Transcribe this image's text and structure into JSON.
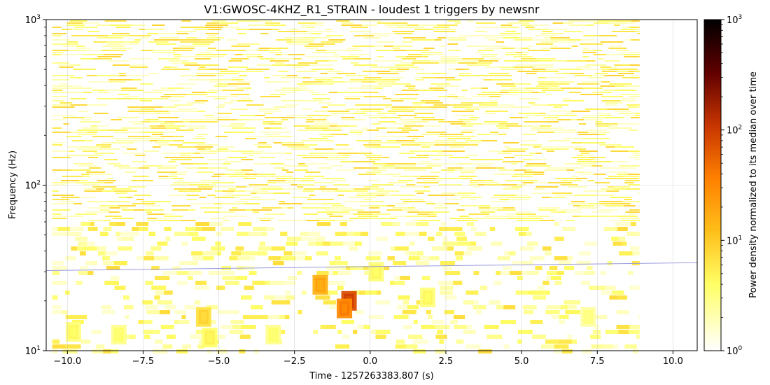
{
  "chart_data": {
    "type": "heatmap",
    "title": "V1:GWOSC-4KHZ_R1_STRAIN - loudest 1 triggers by newsnr",
    "xlabel": "Time - 1257263383.807 (s)",
    "ylabel": "Frequency (Hz)",
    "xlim": [
      -10.7,
      10.8
    ],
    "ylim": [
      10,
      1000
    ],
    "yscale": "log",
    "data_time_range": [
      -10.5,
      8.9
    ],
    "x_ticks": [
      {
        "value": -10.0,
        "label": "−10.0"
      },
      {
        "value": -7.5,
        "label": "−7.5"
      },
      {
        "value": -5.0,
        "label": "−5.0"
      },
      {
        "value": -2.5,
        "label": "−2.5"
      },
      {
        "value": 0.0,
        "label": "0.0"
      },
      {
        "value": 2.5,
        "label": "2.5"
      },
      {
        "value": 5.0,
        "label": "5.0"
      },
      {
        "value": 7.5,
        "label": "7.5"
      },
      {
        "value": 10.0,
        "label": "10.0"
      }
    ],
    "y_ticks": [
      {
        "value": 10,
        "base": "10",
        "exp": "1"
      },
      {
        "value": 100,
        "base": "10",
        "exp": "2"
      },
      {
        "value": 1000,
        "base": "10",
        "exp": "3"
      }
    ],
    "grid": true,
    "colorbar": {
      "label": "Power density normalized to its median over time",
      "scale": "log",
      "range": [
        1,
        1000
      ],
      "colormap": "afmhot_r",
      "ticks": [
        {
          "value": 1,
          "base": "10",
          "exp": "0"
        },
        {
          "value": 10,
          "base": "10",
          "exp": "1"
        },
        {
          "value": 100,
          "base": "10",
          "exp": "2"
        },
        {
          "value": 1000,
          "base": "10",
          "exp": "3"
        }
      ]
    },
    "track_line": {
      "color": "#9999dd",
      "points": [
        {
          "x": -10.7,
          "y": 30.5
        },
        {
          "x": 10.8,
          "y": 34
        }
      ]
    },
    "hotspots": [
      {
        "x": -0.7,
        "y": 20,
        "value": 300
      },
      {
        "x": -0.85,
        "y": 18,
        "value": 120
      },
      {
        "x": -1.65,
        "y": 25,
        "value": 60
      },
      {
        "x": -5.5,
        "y": 16,
        "value": 25
      },
      {
        "x": -9.8,
        "y": 13,
        "value": 12
      },
      {
        "x": -8.3,
        "y": 12.5,
        "value": 10
      },
      {
        "x": -5.3,
        "y": 12,
        "value": 14
      },
      {
        "x": -3.2,
        "y": 12.5,
        "value": 10
      },
      {
        "x": 0.2,
        "y": 30,
        "value": 12
      },
      {
        "x": 1.9,
        "y": 21,
        "value": 12
      },
      {
        "x": 7.2,
        "y": 16,
        "value": 8
      }
    ]
  }
}
